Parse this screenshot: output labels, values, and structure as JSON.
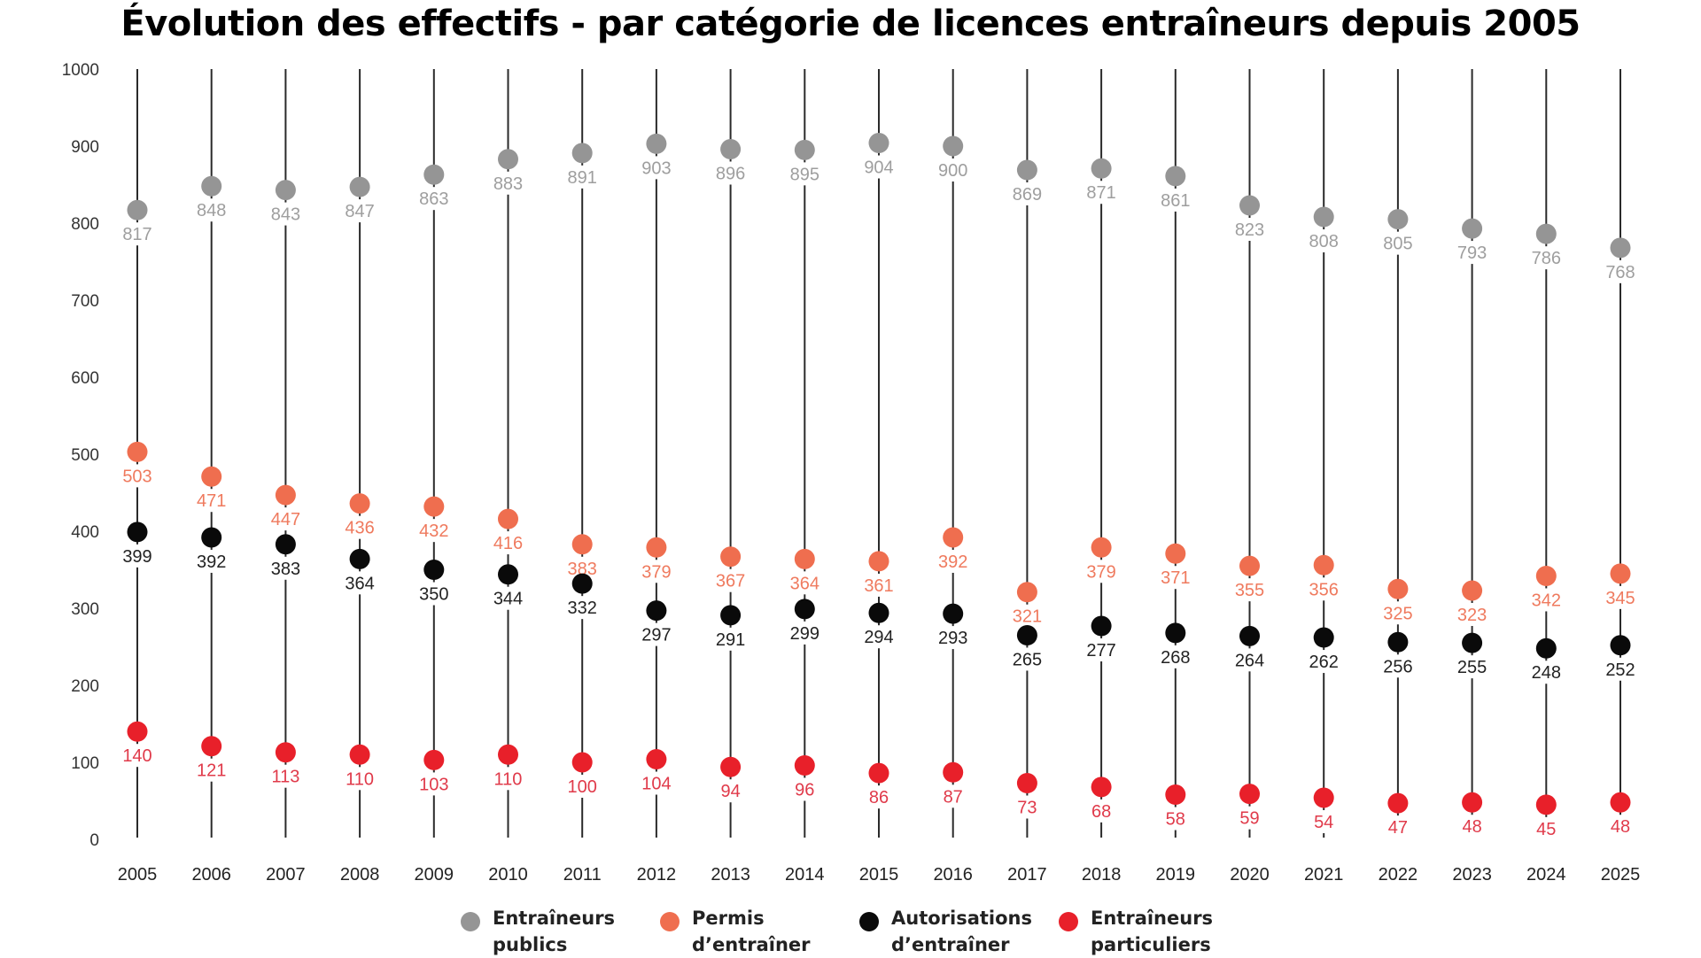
{
  "chart_data": {
    "type": "scatter",
    "subtype": "dot-plot with vertical stems",
    "title": "Évolution des effectifs - par catégorie de licences entraîneurs depuis 2005",
    "xlabel": "",
    "ylabel": "",
    "ylim": [
      0,
      1000
    ],
    "yticks": [
      0,
      100,
      200,
      300,
      400,
      500,
      600,
      700,
      800,
      900,
      1000
    ],
    "grid": false,
    "legend_position": "bottom-center",
    "categories": [
      "2005",
      "2006",
      "2007",
      "2008",
      "2009",
      "2010",
      "2011",
      "2012",
      "2013",
      "2014",
      "2015",
      "2016",
      "2017",
      "2018",
      "2019",
      "2020",
      "2021",
      "2022",
      "2023",
      "2024",
      "2025"
    ],
    "series": [
      {
        "name": "Entraîneurs publics",
        "color": "#959595",
        "label_color": "#9e9e9e",
        "values": [
          817,
          848,
          843,
          847,
          863,
          883,
          891,
          903,
          896,
          895,
          904,
          900,
          869,
          871,
          861,
          823,
          808,
          805,
          793,
          786,
          768
        ]
      },
      {
        "name": "Permis d’entraîner",
        "color": "#ef6e4f",
        "label_color": "#ef7a5e",
        "values": [
          503,
          471,
          447,
          436,
          432,
          416,
          383,
          379,
          367,
          364,
          361,
          392,
          321,
          379,
          371,
          355,
          356,
          325,
          323,
          342,
          345
        ]
      },
      {
        "name": "Autorisations d’entraîner",
        "color": "#0a0a0a",
        "label_color": "#222222",
        "values": [
          399,
          392,
          383,
          364,
          350,
          344,
          332,
          297,
          291,
          299,
          294,
          293,
          265,
          277,
          268,
          264,
          262,
          256,
          255,
          248,
          252
        ]
      },
      {
        "name": "Entraîneurs particuliers",
        "color": "#e8202a",
        "label_color": "#e03a4a",
        "values": [
          140,
          121,
          113,
          110,
          103,
          110,
          100,
          104,
          94,
          96,
          86,
          87,
          73,
          68,
          58,
          59,
          54,
          47,
          48,
          45,
          48
        ]
      }
    ]
  },
  "legend": [
    {
      "label": "Entraîneurs\npublics",
      "color": "#959595"
    },
    {
      "label": "Permis\nd’entraîner",
      "color": "#ef6e4f"
    },
    {
      "label": "Autorisations\nd’entraîner",
      "color": "#0a0a0a"
    },
    {
      "label": "Entraîneurs\nparticuliers",
      "color": "#e8202a"
    }
  ]
}
